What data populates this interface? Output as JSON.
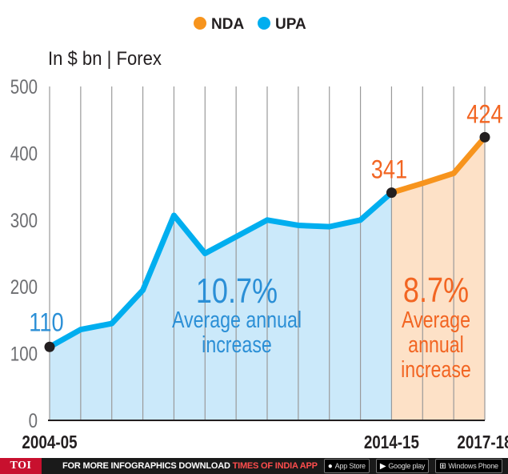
{
  "chart_data": {
    "type": "area",
    "title": "In $ bn | Forex",
    "legend": [
      {
        "label": "NDA",
        "color": "#f7941d"
      },
      {
        "label": "UPA",
        "color": "#00aeef"
      }
    ],
    "legend_position": "top-center",
    "ylim": [
      0,
      500
    ],
    "yticks": [
      0,
      100,
      200,
      300,
      400,
      500
    ],
    "x_labels": [
      {
        "index": 0,
        "label": "2004-05"
      },
      {
        "index": 11,
        "label": "2014-15"
      },
      {
        "index": 14,
        "label": "2017-18"
      }
    ],
    "x": [
      0,
      1,
      2,
      3,
      4,
      5,
      6,
      7,
      8,
      9,
      10,
      11,
      12,
      13,
      14
    ],
    "series": [
      {
        "name": "UPA",
        "color": "#00aeef",
        "fill": "#cbe9fa",
        "x": [
          0,
          1,
          2,
          3,
          4,
          5,
          6,
          7,
          8,
          9,
          10,
          11
        ],
        "values": [
          110,
          136,
          145,
          195,
          307,
          250,
          275,
          300,
          292,
          290,
          300,
          341
        ]
      },
      {
        "name": "NDA",
        "color": "#f7941d",
        "fill": "#fde1c7",
        "x": [
          11,
          12,
          13,
          14
        ],
        "values": [
          341,
          355,
          370,
          424
        ]
      }
    ],
    "point_labels": [
      {
        "x": 0,
        "value": 110,
        "label": "110",
        "color": "#2b8fd6"
      },
      {
        "x": 11,
        "value": 341,
        "label": "341",
        "color": "#f26522"
      },
      {
        "x": 14,
        "value": 424,
        "label": "424",
        "color": "#f26522"
      }
    ],
    "annotations": [
      {
        "series": "UPA",
        "pct": "10.7%",
        "line1": "Average annual",
        "line2": "increase",
        "color": "#2b8fd6"
      },
      {
        "series": "NDA",
        "pct": "8.7%",
        "line1": "Average",
        "line2": "annual",
        "line3": "increase",
        "color": "#f26522"
      }
    ],
    "grid": "vertical"
  },
  "footer": {
    "logo": "TOI",
    "promo_text": "FOR MORE  INFOGRAPHICS DOWNLOAD",
    "promo_app": "TIMES OF INDIA APP",
    "stores": [
      {
        "icon": "",
        "icon_name": "apple-icon",
        "label": "App Store"
      },
      {
        "icon": "▶",
        "icon_name": "google-play-icon",
        "label": "Google play"
      },
      {
        "icon": "⊞",
        "icon_name": "windows-icon",
        "label": "Windows Phone"
      }
    ]
  }
}
